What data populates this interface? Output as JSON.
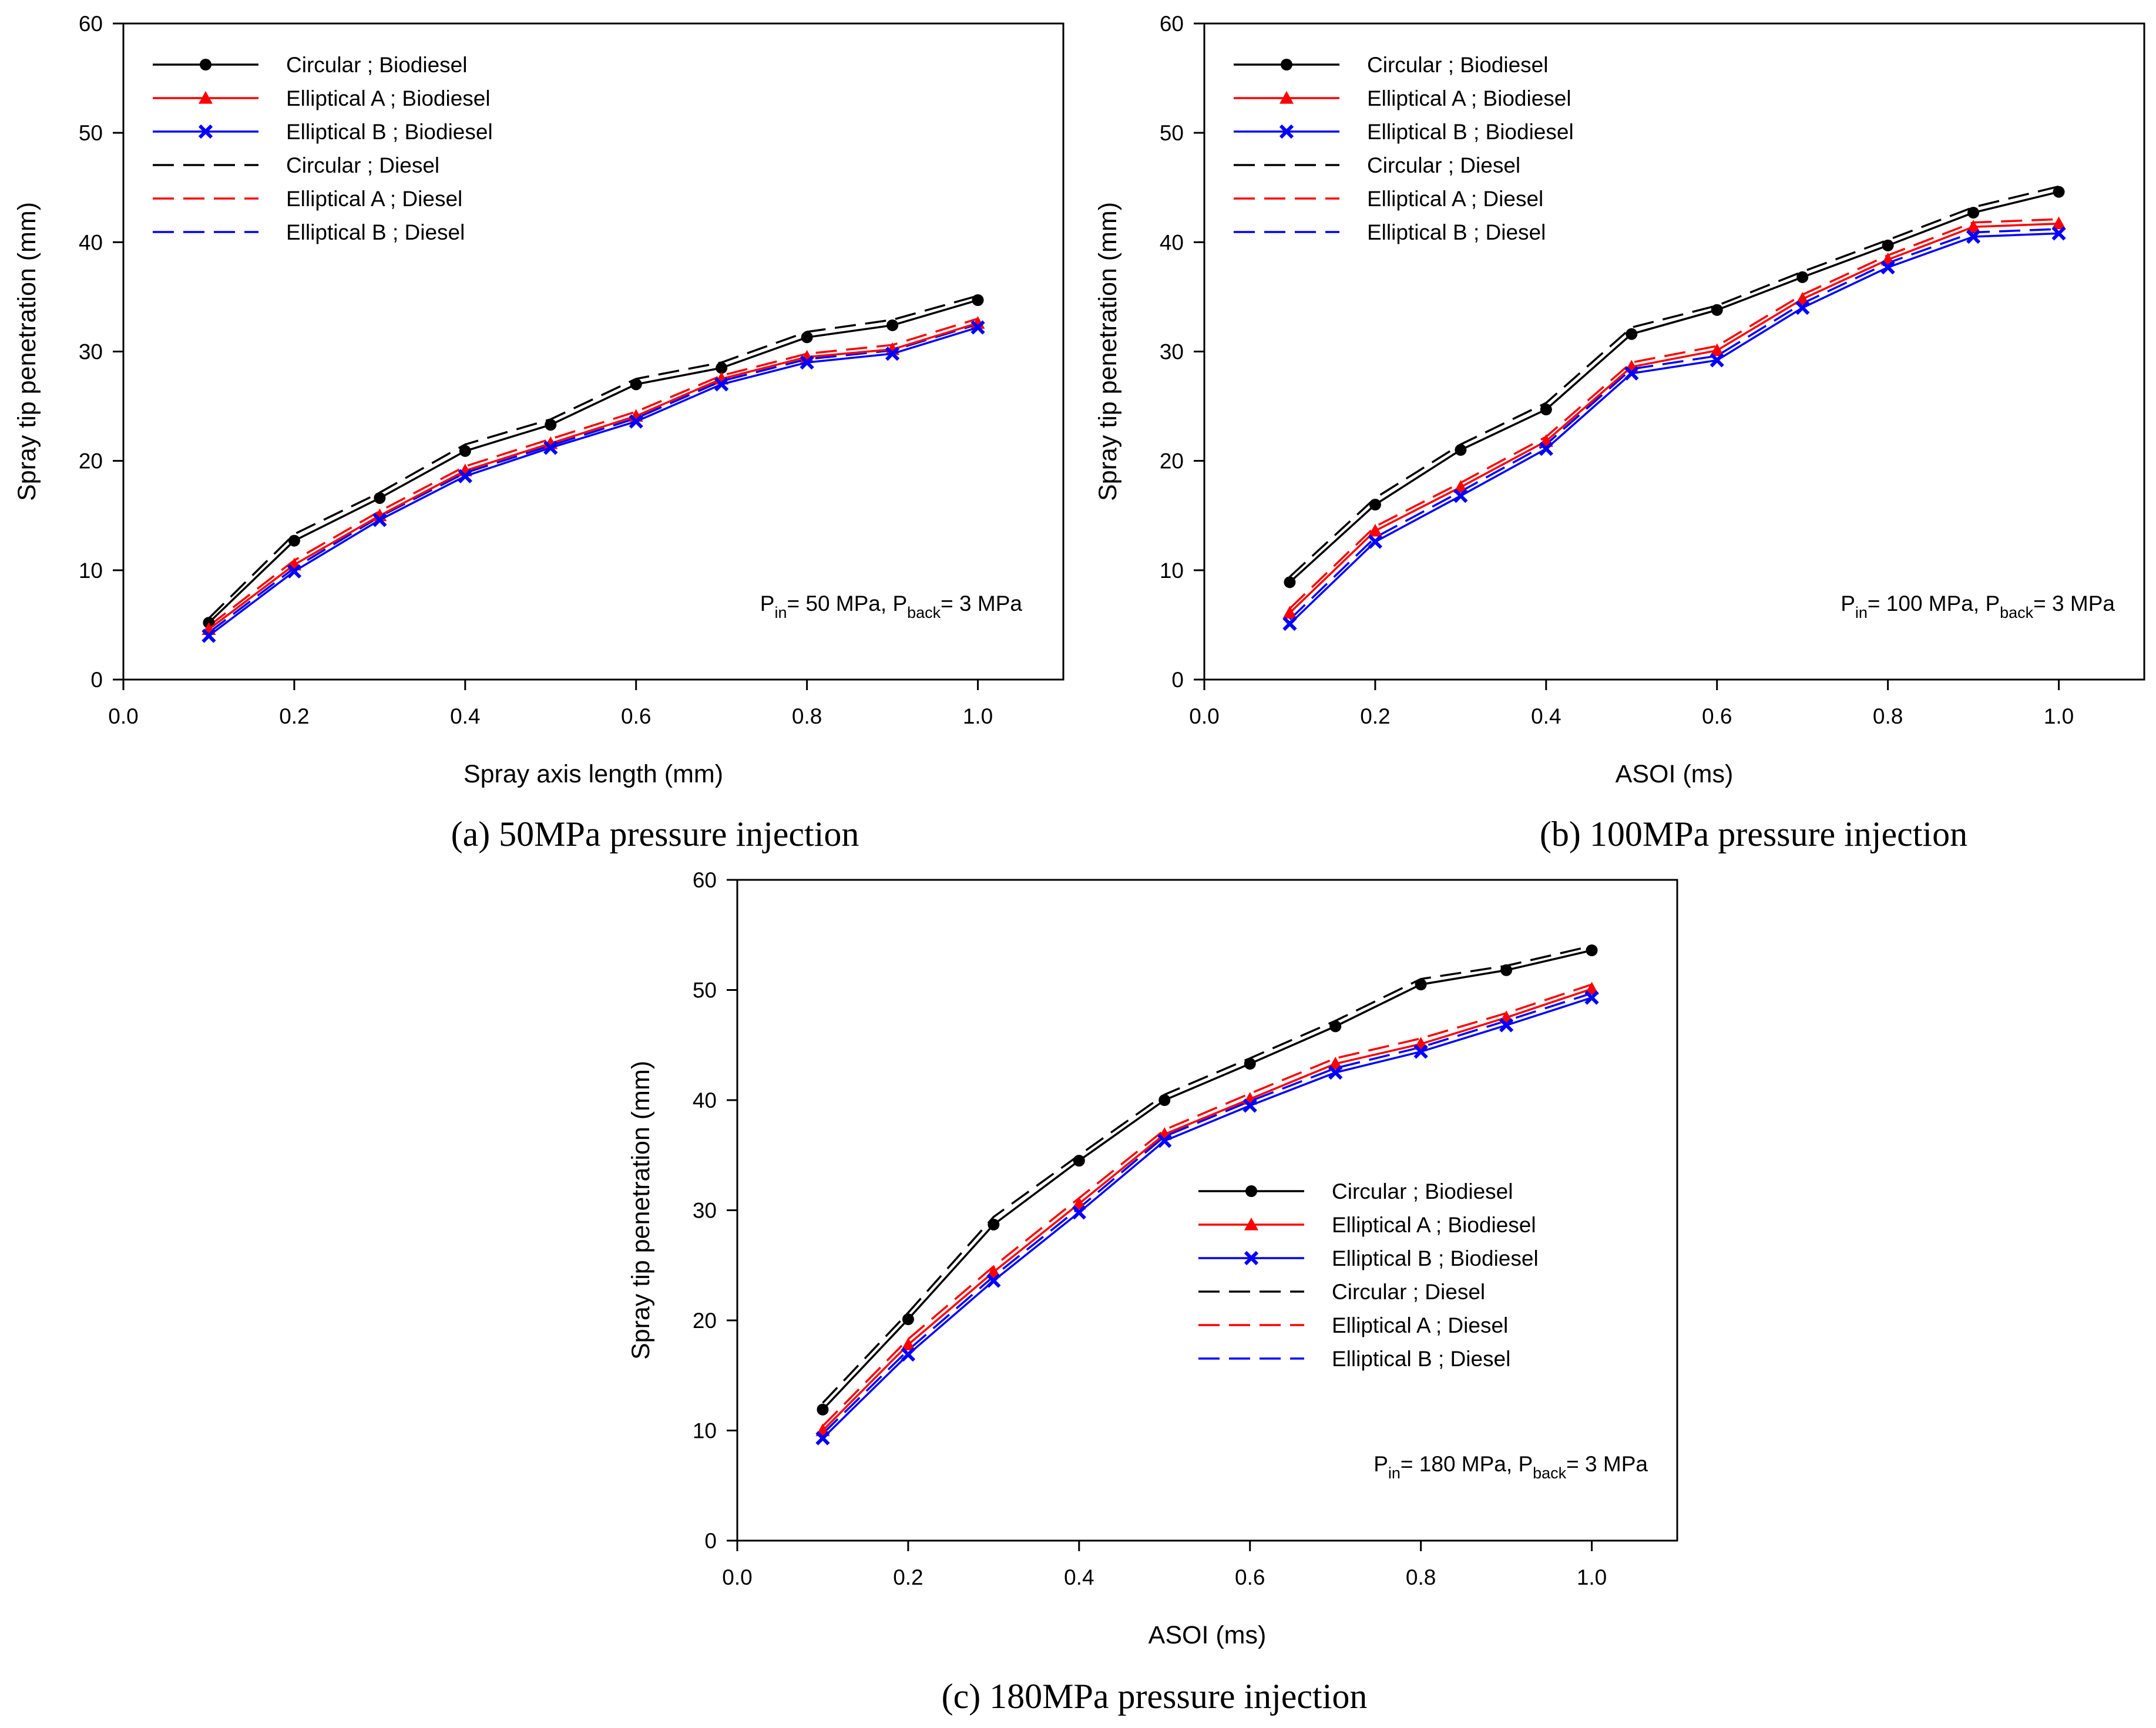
{
  "figure": {
    "captions": [
      "(a)  50MPa pressure injection",
      "(b) 100MPa pressure injection",
      "(c) 180MPa pressure injection"
    ]
  },
  "chart_data": [
    {
      "type": "line",
      "panel": "a",
      "caption": "(a)  50MPa pressure injection",
      "xlabel": "Spray axis length (mm)",
      "ylabel": "Spray tip penetration (mm)",
      "xlim": [
        0.0,
        1.1
      ],
      "ylim": [
        0,
        60
      ],
      "xticks": [
        "0.0",
        "0.2",
        "0.4",
        "0.6",
        "0.8",
        "1.0"
      ],
      "yticks": [
        "0",
        "10",
        "20",
        "30",
        "40",
        "50",
        "60"
      ],
      "grid": false,
      "legend_position": "top-left",
      "annotation": {
        "p": "P",
        "in_sub": "in",
        "mid": "= 50 MPa, P",
        "back_sub": "back",
        "end": "= 3 MPa"
      },
      "x": [
        0.1,
        0.2,
        0.3,
        0.4,
        0.5,
        0.6,
        0.7,
        0.8,
        0.9,
        1.0
      ],
      "series": [
        {
          "name": "Circular ; Biodiesel",
          "color": "#000000",
          "dash": "solid",
          "marker": "circle",
          "values": [
            5.2,
            12.7,
            16.6,
            20.9,
            23.3,
            27.0,
            28.5,
            31.3,
            32.4,
            34.7
          ]
        },
        {
          "name": "Elliptical A ; Biodiesel",
          "color": "#ff0000",
          "dash": "solid",
          "marker": "triangle",
          "values": [
            4.6,
            10.5,
            15.0,
            19.1,
            21.6,
            24.1,
            27.5,
            29.5,
            30.2,
            32.6
          ]
        },
        {
          "name": "Elliptical B ; Biodiesel",
          "color": "#0000ff",
          "dash": "solid",
          "marker": "x",
          "values": [
            4.0,
            9.9,
            14.6,
            18.6,
            21.2,
            23.6,
            27.0,
            29.0,
            29.8,
            32.2
          ]
        },
        {
          "name": "Circular ; Diesel",
          "color": "#000000",
          "dash": "dashed",
          "marker": "none",
          "values": [
            5.6,
            13.3,
            17.1,
            21.5,
            23.8,
            27.5,
            29.0,
            31.8,
            32.9,
            35.1
          ]
        },
        {
          "name": "Elliptical A ; Diesel",
          "color": "#ff0000",
          "dash": "dashed",
          "marker": "none",
          "values": [
            4.9,
            10.9,
            15.4,
            19.5,
            22.0,
            24.5,
            27.8,
            29.8,
            30.6,
            33.0
          ]
        },
        {
          "name": "Elliptical B ; Diesel",
          "color": "#0000ff",
          "dash": "dashed",
          "marker": "none",
          "values": [
            4.3,
            10.2,
            14.9,
            18.9,
            21.4,
            23.9,
            27.3,
            29.3,
            30.1,
            32.5
          ]
        }
      ]
    },
    {
      "type": "line",
      "panel": "b",
      "caption": "(b) 100MPa pressure injection",
      "xlabel": "ASOI (ms)",
      "ylabel": "Spray tip penetration (mm)",
      "xlim": [
        0.0,
        1.1
      ],
      "ylim": [
        0,
        60
      ],
      "xticks": [
        "0.0",
        "0.2",
        "0.4",
        "0.6",
        "0.8",
        "1.0"
      ],
      "yticks": [
        "0",
        "10",
        "20",
        "30",
        "40",
        "50",
        "60"
      ],
      "grid": false,
      "legend_position": "top-left",
      "annotation": {
        "p": "P",
        "in_sub": "in",
        "mid": "= 100 MPa, P",
        "back_sub": "back",
        "end": "= 3 MPa"
      },
      "x": [
        0.1,
        0.2,
        0.3,
        0.4,
        0.5,
        0.6,
        0.7,
        0.8,
        0.9,
        1.0
      ],
      "series": [
        {
          "name": "Circular ; Biodiesel",
          "color": "#000000",
          "dash": "solid",
          "marker": "circle",
          "values": [
            8.9,
            16.0,
            21.0,
            24.7,
            31.6,
            33.8,
            36.8,
            39.7,
            42.7,
            44.6
          ]
        },
        {
          "name": "Elliptical A ; Biodiesel",
          "color": "#ff0000",
          "dash": "solid",
          "marker": "triangle",
          "values": [
            6.1,
            13.6,
            17.6,
            21.8,
            28.6,
            30.1,
            34.8,
            38.4,
            41.4,
            41.7
          ]
        },
        {
          "name": "Elliptical B ; Biodiesel",
          "color": "#0000ff",
          "dash": "solid",
          "marker": "x",
          "values": [
            5.1,
            12.6,
            16.8,
            21.1,
            28.0,
            29.2,
            34.0,
            37.7,
            40.5,
            40.8
          ]
        },
        {
          "name": "Circular ; Diesel",
          "color": "#000000",
          "dash": "dashed",
          "marker": "none",
          "values": [
            9.4,
            16.6,
            21.5,
            25.3,
            32.2,
            34.2,
            37.3,
            40.2,
            43.2,
            45.1
          ]
        },
        {
          "name": "Elliptical A ; Diesel",
          "color": "#ff0000",
          "dash": "dashed",
          "marker": "none",
          "values": [
            6.5,
            14.0,
            18.0,
            22.2,
            29.0,
            30.5,
            35.2,
            38.8,
            41.8,
            42.1
          ]
        },
        {
          "name": "Elliptical B ; Diesel",
          "color": "#0000ff",
          "dash": "dashed",
          "marker": "none",
          "values": [
            5.5,
            13.0,
            17.2,
            21.5,
            28.4,
            29.6,
            34.4,
            38.1,
            40.9,
            41.2
          ]
        }
      ]
    },
    {
      "type": "line",
      "panel": "c",
      "caption": "(c) 180MPa pressure injection",
      "xlabel": "ASOI (ms)",
      "ylabel": "Spray tip penetration (mm)",
      "xlim": [
        0.0,
        1.1
      ],
      "ylim": [
        0,
        60
      ],
      "xticks": [
        "0.0",
        "0.2",
        "0.4",
        "0.6",
        "0.8",
        "1.0"
      ],
      "yticks": [
        "0",
        "10",
        "20",
        "30",
        "40",
        "50",
        "60"
      ],
      "grid": false,
      "legend_position": "center-right",
      "annotation": {
        "p": "P",
        "in_sub": "in",
        "mid": "= 180 MPa, P",
        "back_sub": "back",
        "end": "= 3 MPa"
      },
      "x": [
        0.1,
        0.2,
        0.3,
        0.4,
        0.5,
        0.6,
        0.7,
        0.8,
        0.9,
        1.0
      ],
      "series": [
        {
          "name": "Circular ; Biodiesel",
          "color": "#000000",
          "dash": "solid",
          "marker": "circle",
          "values": [
            11.9,
            20.1,
            28.7,
            34.5,
            40.0,
            43.3,
            46.7,
            50.5,
            51.8,
            53.6
          ]
        },
        {
          "name": "Elliptical A ; Biodiesel",
          "color": "#ff0000",
          "dash": "solid",
          "marker": "triangle",
          "values": [
            10.0,
            17.8,
            24.4,
            30.6,
            36.9,
            40.1,
            43.3,
            45.1,
            47.5,
            50.1
          ]
        },
        {
          "name": "Elliptical B ; Biodiesel",
          "color": "#0000ff",
          "dash": "solid",
          "marker": "x",
          "values": [
            9.3,
            16.9,
            23.6,
            29.8,
            36.3,
            39.5,
            42.5,
            44.4,
            46.8,
            49.3
          ]
        },
        {
          "name": "Circular ; Diesel",
          "color": "#000000",
          "dash": "dashed",
          "marker": "none",
          "values": [
            12.5,
            20.7,
            29.4,
            35.0,
            40.5,
            43.8,
            47.2,
            51.0,
            52.2,
            54.0
          ]
        },
        {
          "name": "Elliptical A ; Diesel",
          "color": "#ff0000",
          "dash": "dashed",
          "marker": "none",
          "values": [
            10.4,
            18.3,
            24.9,
            31.1,
            37.3,
            40.6,
            43.8,
            45.6,
            47.9,
            50.5
          ]
        },
        {
          "name": "Elliptical B ; Diesel",
          "color": "#0000ff",
          "dash": "dashed",
          "marker": "none",
          "values": [
            9.7,
            17.3,
            24.0,
            30.2,
            36.7,
            39.9,
            42.9,
            44.8,
            47.2,
            49.7
          ]
        }
      ]
    }
  ]
}
